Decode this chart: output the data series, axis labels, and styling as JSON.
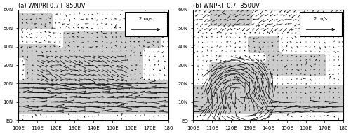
{
  "title_a": "(a) WNPRI 0.7+ 850UV",
  "title_b": "(b) WNPRI -0.7- 850UV",
  "lon_min": 100,
  "lon_max": 180,
  "lat_min": 0,
  "lat_max": 60,
  "lon_ticks": [
    100,
    110,
    120,
    130,
    140,
    150,
    160,
    170,
    180
  ],
  "lat_ticks": [
    0,
    10,
    20,
    30,
    40,
    50,
    60
  ],
  "lat_labels": [
    "EQ",
    "10N",
    "20N",
    "30N",
    "40N",
    "50N",
    "60N"
  ],
  "lon_labels": [
    "100E",
    "110E",
    "120E",
    "130E",
    "140E",
    "150E",
    "160E",
    "170E",
    "180"
  ],
  "ref_arrow_speed": 2,
  "ref_arrow_label": "2 m/s",
  "background_color": "#ffffff",
  "shading_color": "#aaaaaa",
  "arrow_color": "#000000",
  "figsize": [
    5.0,
    1.9
  ],
  "dpi": 100
}
